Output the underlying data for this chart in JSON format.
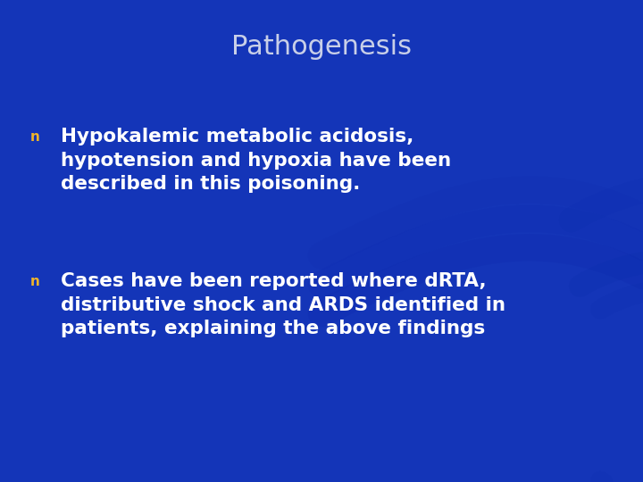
{
  "title": "Pathogenesis",
  "title_color": "#c8cfe8",
  "title_fontsize": 22,
  "background_color": "#1435b8",
  "bullet_color": "#f0b429",
  "bullet1_line1": "Hypokalemic metabolic acidosis,",
  "bullet1_line2": "hypotension and hypoxia have been",
  "bullet1_line3": "described in this poisoning.",
  "bullet2_line1": "Cases have been reported where dRTA,",
  "bullet2_line2": "distributive shock and ARDS identified in",
  "bullet2_line3": "patients, explaining the above findings",
  "text_color": "#ffffff",
  "text_fontsize": 15.5,
  "bullet_fontsize": 11
}
